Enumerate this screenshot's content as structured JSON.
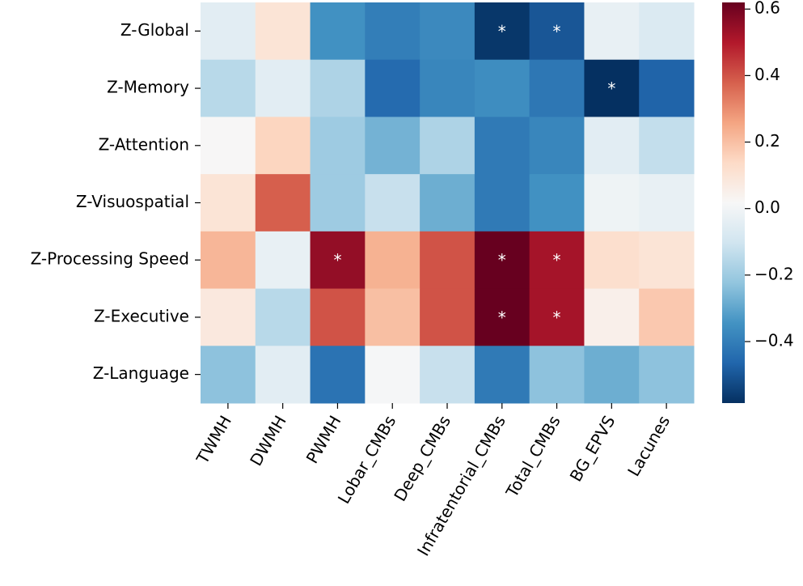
{
  "chart_data": {
    "type": "heatmap",
    "categories": [
      "TWMH",
      "DWMH",
      "PWMH",
      "Lobar_CMBs",
      "Deep_CMBs",
      "Infratentorial_CMBs",
      "Total_CMBs",
      "BG_EPVS",
      "Lacunes"
    ],
    "rows": [
      "Z-Global",
      "Z-Memory",
      "Z-Attention",
      "Z-Visuospatial",
      "Z-Processing Speed",
      "Z-Executive",
      "Z-Language"
    ],
    "values": [
      [
        -0.05,
        0.1,
        -0.35,
        -0.4,
        -0.37,
        -0.57,
        -0.5,
        -0.03,
        -0.07
      ],
      [
        -0.15,
        -0.05,
        -0.17,
        -0.45,
        -0.38,
        -0.36,
        -0.42,
        -0.585,
        -0.47
      ],
      [
        0.02,
        0.15,
        -0.2,
        -0.27,
        -0.17,
        -0.41,
        -0.38,
        -0.05,
        -0.13
      ],
      [
        0.1,
        0.38,
        -0.2,
        -0.12,
        -0.28,
        -0.41,
        -0.35,
        -0.01,
        -0.03
      ],
      [
        0.22,
        -0.03,
        0.55,
        0.23,
        0.4,
        0.62,
        0.52,
        0.12,
        0.1
      ],
      [
        0.08,
        -0.15,
        0.4,
        0.2,
        0.4,
        0.62,
        0.52,
        0.05,
        0.18
      ],
      [
        -0.23,
        -0.05,
        -0.43,
        0.01,
        -0.12,
        -0.41,
        -0.23,
        -0.28,
        -0.23
      ]
    ],
    "cell_labels": [
      [
        null,
        null,
        null,
        null,
        null,
        "*",
        "*",
        null,
        null
      ],
      [
        null,
        null,
        null,
        null,
        null,
        null,
        null,
        "*",
        null
      ],
      [
        null,
        null,
        null,
        null,
        null,
        null,
        null,
        null,
        null
      ],
      [
        null,
        null,
        null,
        null,
        null,
        null,
        null,
        null,
        null
      ],
      [
        null,
        null,
        "*",
        null,
        null,
        "*",
        "*",
        null,
        null
      ],
      [
        null,
        null,
        null,
        null,
        null,
        "*",
        "*",
        null,
        null
      ],
      [
        null,
        null,
        null,
        null,
        null,
        null,
        null,
        null,
        null
      ]
    ],
    "colormap": [
      "#053061",
      "#2166ac",
      "#4393c3",
      "#92c5de",
      "#d1e5f0",
      "#f7f7f7",
      "#fddbc7",
      "#f4a582",
      "#d6604d",
      "#b2182b",
      "#67001f"
    ],
    "clim": [
      -0.585,
      0.62
    ],
    "cticks": [
      {
        "value": -0.4,
        "label": "−0.4"
      },
      {
        "value": -0.2,
        "label": "−0.2"
      },
      {
        "value": 0,
        "label": "0.0"
      },
      {
        "value": 0.2,
        "label": "0.2"
      },
      {
        "value": 0.4,
        "label": "0.4"
      },
      {
        "value": 0.6,
        "label": "0.6"
      }
    ]
  }
}
